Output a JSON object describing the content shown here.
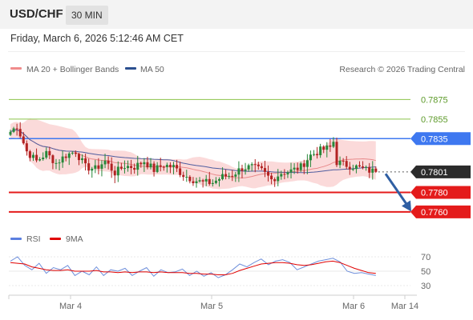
{
  "header": {
    "symbol": "USD/CHF",
    "timeframe": "30 MIN",
    "datetime": "Friday, March 6, 2026 5:12:46 AM CET"
  },
  "colors": {
    "bullish": "#27883a",
    "bearish": "#b22222",
    "ma20": "#e8898a",
    "bollinger_fill": "#fbdada",
    "ma50": "#4f5d9f",
    "resistance": "#8bc34a",
    "pivot": "#3e78f0",
    "support": "#e41b1b",
    "arrow": "#2f5fa3",
    "rsi": "#6f8fdb",
    "rsi_ma": "#e00000"
  },
  "chart_data": [
    {
      "type": "candlestick",
      "legend": [
        {
          "label": "MA 20 + Bollinger Bands",
          "color": "#f08c8c"
        },
        {
          "label": "MA 50",
          "color": "#2b4f8f"
        }
      ],
      "watermark": "Research © 2026 Trading Central",
      "y_range": [
        0.7746,
        0.7895
      ],
      "x_ticks": [
        "Mar 4",
        "Mar 5",
        "Mar 6",
        "Mar 14"
      ],
      "levels": [
        {
          "value": 0.7875,
          "label": "0.7875",
          "kind": "resistance"
        },
        {
          "value": 0.7855,
          "label": "0.7855",
          "kind": "resistance"
        },
        {
          "value": 0.7835,
          "label": "0.7835",
          "kind": "pivot"
        },
        {
          "value": 0.778,
          "label": "0.7780",
          "kind": "support"
        },
        {
          "value": 0.776,
          "label": "0.7760",
          "kind": "support"
        }
      ],
      "last_price": {
        "value": 0.7801,
        "label": "0.7801"
      },
      "forecast_arrow": {
        "from": 0.7799,
        "to": 0.7762
      },
      "close_path": [
        [
          0,
          0.7842
        ],
        [
          2,
          0.7848
        ],
        [
          5,
          0.7822
        ],
        [
          8,
          0.7812
        ],
        [
          11,
          0.782
        ],
        [
          14,
          0.781
        ],
        [
          17,
          0.7818
        ],
        [
          20,
          0.7822
        ],
        [
          23,
          0.7806
        ],
        [
          26,
          0.7804
        ],
        [
          29,
          0.7812
        ],
        [
          32,
          0.78
        ],
        [
          35,
          0.7807
        ],
        [
          38,
          0.7806
        ],
        [
          41,
          0.7812
        ],
        [
          44,
          0.7803
        ],
        [
          47,
          0.7808
        ],
        [
          50,
          0.7806
        ],
        [
          53,
          0.7798
        ],
        [
          56,
          0.7793
        ],
        [
          59,
          0.779
        ],
        [
          62,
          0.779
        ],
        [
          65,
          0.7796
        ],
        [
          68,
          0.7798
        ],
        [
          71,
          0.7805
        ],
        [
          74,
          0.7806
        ],
        [
          77,
          0.7802
        ],
        [
          80,
          0.7793
        ],
        [
          83,
          0.78
        ],
        [
          86,
          0.7802
        ],
        [
          89,
          0.7806
        ],
        [
          92,
          0.7818
        ],
        [
          95,
          0.7823
        ],
        [
          98,
          0.7826
        ],
        [
          99,
          0.7832
        ],
        [
          100,
          0.7811
        ],
        [
          103,
          0.7808
        ],
        [
          106,
          0.7806
        ],
        [
          109,
          0.7803
        ],
        [
          112,
          0.7801
        ]
      ]
    },
    {
      "type": "line",
      "legend": [
        {
          "label": "RSI",
          "color": "#5b7fe0"
        },
        {
          "label": "9MA",
          "color": "#e00000"
        }
      ],
      "y_range": [
        20,
        80
      ],
      "y_ticks": [
        70,
        50,
        30
      ],
      "series": [
        {
          "name": "RSI",
          "values": [
            64,
            70,
            58,
            52,
            61,
            47,
            55,
            52,
            58,
            44,
            50,
            45,
            56,
            44,
            52,
            50,
            54,
            44,
            50,
            55,
            43,
            52,
            48,
            49,
            53,
            44,
            50,
            43,
            48,
            41,
            45,
            52,
            60,
            56,
            62,
            67,
            59,
            64,
            66,
            62,
            52,
            56,
            60,
            64,
            66,
            68,
            63,
            50,
            47,
            48,
            46,
            44
          ]
        },
        {
          "name": "9MA",
          "values": [
            62,
            61,
            60,
            56,
            54,
            52,
            51,
            51,
            52,
            50,
            50,
            50,
            51,
            49,
            49,
            48,
            49,
            48,
            49,
            49,
            48,
            49,
            48,
            48,
            48,
            47,
            47,
            46,
            46,
            45,
            45,
            47,
            51,
            54,
            57,
            60,
            61,
            62,
            62,
            61,
            59,
            58,
            59,
            61,
            63,
            64,
            62,
            58,
            54,
            51,
            48,
            47
          ]
        }
      ]
    }
  ]
}
